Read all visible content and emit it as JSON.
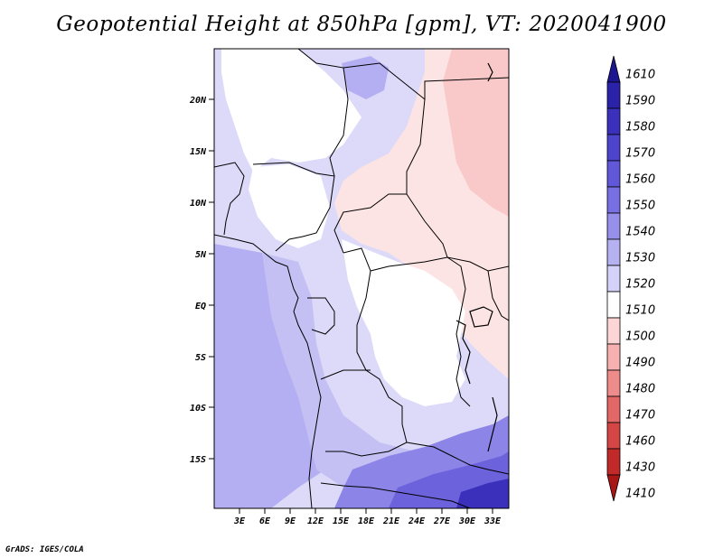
{
  "title": "Geopotential Height at 850hPa [gpm], VT: 2020041900",
  "credit": "GrADS: IGES/COLA",
  "map": {
    "lat_labels": [
      "20N",
      "15N",
      "10N",
      "5N",
      "EQ",
      "5S",
      "10S",
      "15S"
    ],
    "lon_labels": [
      "3E",
      "6E",
      "9E",
      "12E",
      "15E",
      "18E",
      "21E",
      "24E",
      "27E",
      "30E",
      "33E"
    ]
  },
  "colorbar": {
    "levels": [
      "1610",
      "1590",
      "1580",
      "1570",
      "1560",
      "1550",
      "1540",
      "1530",
      "1520",
      "1510",
      "1500",
      "1490",
      "1480",
      "1470",
      "1460",
      "1430",
      "1410"
    ],
    "colors": [
      "#1c1690",
      "#2a22a8",
      "#3a30bc",
      "#4c44cc",
      "#6058d8",
      "#7870e2",
      "#9690ea",
      "#b6b2f2",
      "#d4d2f8",
      "#ffffff",
      "#fcd6d6",
      "#f6b0b0",
      "#ee8c8c",
      "#e26868",
      "#d44646",
      "#c22a2a",
      "#a81616"
    ]
  },
  "field_colors": {
    "lavender_deep": "#b4aef2",
    "lavender_mid": "#c4c0f4",
    "lavender_light": "#dcdaf8",
    "white": "#ffffff",
    "pink_light": "#fde4e4",
    "pink_mid": "#f9c8c8",
    "blue_deep": "#6c62dc",
    "blue_mid": "#8c84e6",
    "blue_dark": "#3a30bc"
  }
}
